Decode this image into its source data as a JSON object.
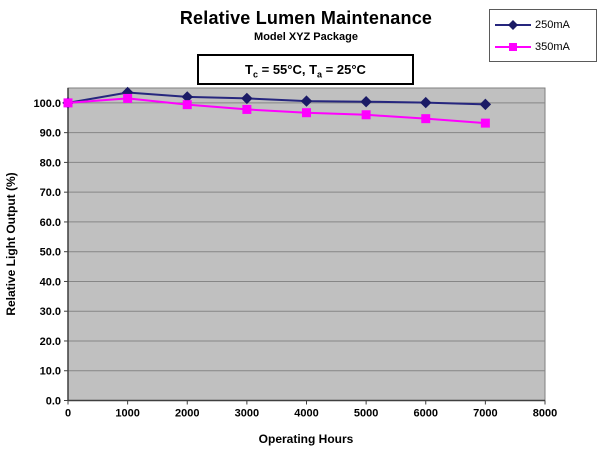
{
  "chart_data": {
    "type": "line",
    "title": "Relative Lumen Maintenance",
    "subtitle": "Model XYZ Package",
    "annotation": "Tc = 55°C, Ta = 25°C",
    "annotation_parts": {
      "p1": "T",
      "s1": "c",
      "p2": " = 55°C, T",
      "s2": "a",
      "p3": " = 25°C"
    },
    "xlabel": "Operating Hours",
    "ylabel": "Relative Light Output (%)",
    "x": [
      0,
      1000,
      2000,
      3000,
      4000,
      5000,
      6000,
      7000
    ],
    "series": [
      {
        "name": "250mA",
        "color": "#26267e",
        "marker_color": "#1b1b66",
        "marker": "diamond",
        "values": [
          100.0,
          103.5,
          102.0,
          101.5,
          100.6,
          100.4,
          100.1,
          99.5
        ]
      },
      {
        "name": "350mA",
        "color": "#ff00ff",
        "marker_color": "#ff00ff",
        "marker": "square",
        "values": [
          100.0,
          101.5,
          99.4,
          97.8,
          96.7,
          96.0,
          94.7,
          93.2
        ]
      }
    ],
    "xlim": [
      0,
      8000
    ],
    "ylim": [
      0,
      105
    ],
    "xtick_step": 1000,
    "ytick_step": 10,
    "ytick_max_label": 100,
    "xtick_labels": [
      "0",
      "1000",
      "2000",
      "3000",
      "4000",
      "5000",
      "6000",
      "7000",
      "8000"
    ],
    "ytick_labels": [
      "0.0",
      "10.0",
      "20.0",
      "30.0",
      "40.0",
      "50.0",
      "60.0",
      "70.0",
      "80.0",
      "90.0",
      "100.0"
    ],
    "legend_position": "top-right",
    "grid": true,
    "colors": {
      "plot_bg": "#c0c0c0",
      "plot_border": "#7f7f7f",
      "gridline": "#868686",
      "axis": "#3f3f3f",
      "text": "#000000"
    }
  }
}
